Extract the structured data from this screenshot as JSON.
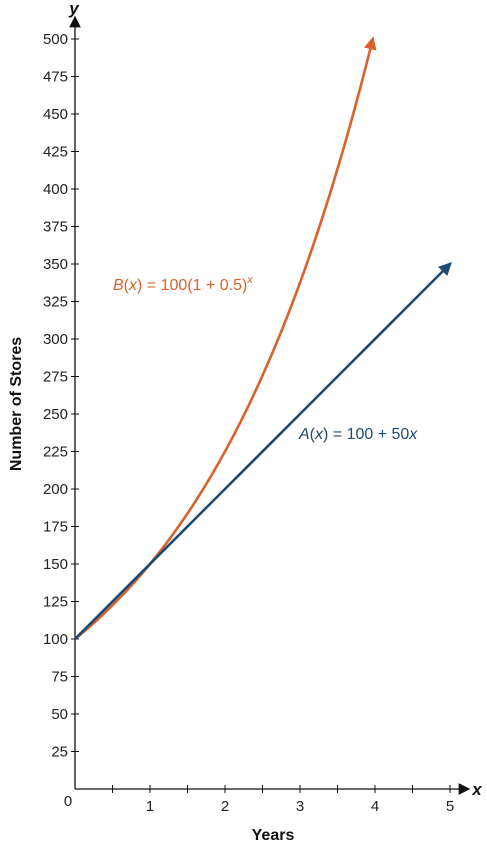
{
  "chart_data": {
    "type": "line",
    "xlabel": "Years",
    "ylabel": "Number of Stores",
    "x_axis_var": "x",
    "y_axis_var": "y",
    "xlim": [
      0,
      5
    ],
    "ylim": [
      0,
      500
    ],
    "x_ticks": [
      0,
      1,
      2,
      3,
      4,
      5
    ],
    "x_minor_step": 0.5,
    "y_ticks": [
      25,
      50,
      75,
      100,
      125,
      150,
      175,
      200,
      225,
      250,
      275,
      300,
      325,
      350,
      375,
      400,
      425,
      450,
      475,
      500
    ],
    "origin_label": "0",
    "grid": false,
    "series": [
      {
        "name": "B(x) = 100(1 + 0.5)^x",
        "label_parts": {
          "fname": "B",
          "var": "x",
          "middle": " = 100(1 + 0.5)",
          "sup": "x"
        },
        "color": "#d9622b",
        "x": [
          0,
          0.5,
          1,
          1.5,
          2,
          2.5,
          3,
          3.5,
          3.97
        ],
        "y": [
          100,
          122.5,
          150,
          183.7,
          225,
          275.6,
          337.5,
          413.4,
          500
        ]
      },
      {
        "name": "A(x) = 100 + 50x",
        "label_parts": {
          "fname": "A",
          "var": "x",
          "middle": " = 100 + 50",
          "var2": "x"
        },
        "color": "#1f4a73",
        "x": [
          0,
          5
        ],
        "y": [
          100,
          350
        ]
      }
    ]
  }
}
